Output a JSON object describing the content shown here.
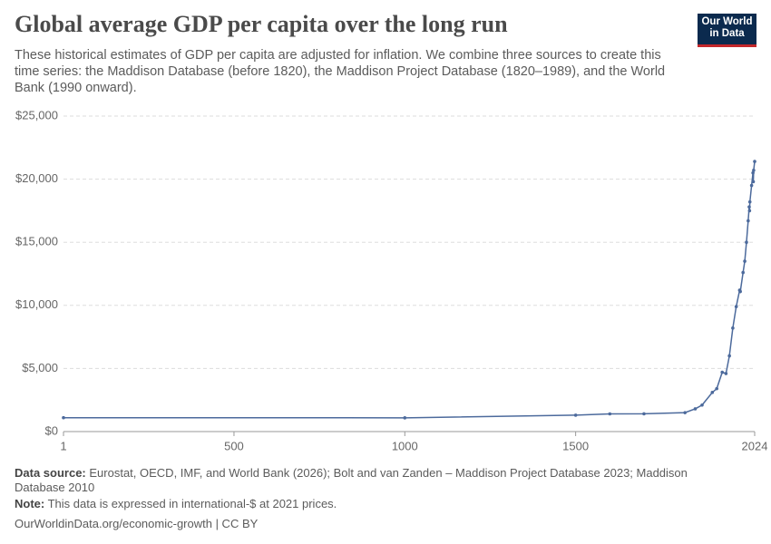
{
  "chart_data": {
    "type": "line",
    "title": "Global average GDP per capita over the long run",
    "subtitle": "These historical estimates of GDP per capita are adjusted for inflation. We combine three sources to create this time series: the Maddison Database (before 1820), the Maddison Project Database (1820–1989), and the World Bank (1990 onward).",
    "x": [
      1,
      1000,
      1500,
      1600,
      1700,
      1820,
      1850,
      1870,
      1900,
      1913,
      1929,
      1940,
      1950,
      1960,
      1970,
      1980,
      1982,
      1990,
      1995,
      2000,
      2005,
      2008,
      2009,
      2010,
      2015,
      2019,
      2020,
      2021,
      2024
    ],
    "values": [
      1100,
      1090,
      1300,
      1400,
      1410,
      1500,
      1800,
      2100,
      3100,
      3400,
      4700,
      4600,
      6000,
      8200,
      9900,
      11200,
      11100,
      12600,
      13500,
      15000,
      16700,
      17800,
      17500,
      18200,
      19500,
      20500,
      19800,
      20700,
      21400
    ],
    "color": "#4c6a9c",
    "xlim": [
      1,
      2024
    ],
    "xticks": [
      1,
      500,
      1000,
      1500,
      2024
    ],
    "ylim": [
      0,
      25000
    ],
    "yticks": [
      {
        "value": 0,
        "label": "$0"
      },
      {
        "value": 5000,
        "label": "$5,000"
      },
      {
        "value": 10000,
        "label": "$10,000"
      },
      {
        "value": 15000,
        "label": "$15,000"
      },
      {
        "value": 20000,
        "label": "$20,000"
      },
      {
        "value": 25000,
        "label": "$25,000"
      }
    ],
    "grid": true
  },
  "logo": {
    "line1": "Our World",
    "line2": "in Data"
  },
  "footer": {
    "source_label": "Data source:",
    "source": "Eurostat, OECD, IMF, and World Bank (2026); Bolt and van Zanden – Maddison Project Database 2023; Maddison Database 2010",
    "note_label": "Note:",
    "note": "This data is expressed in international-$ at 2021 prices.",
    "url": "OurWorldinData.org/economic-growth | CC BY"
  }
}
